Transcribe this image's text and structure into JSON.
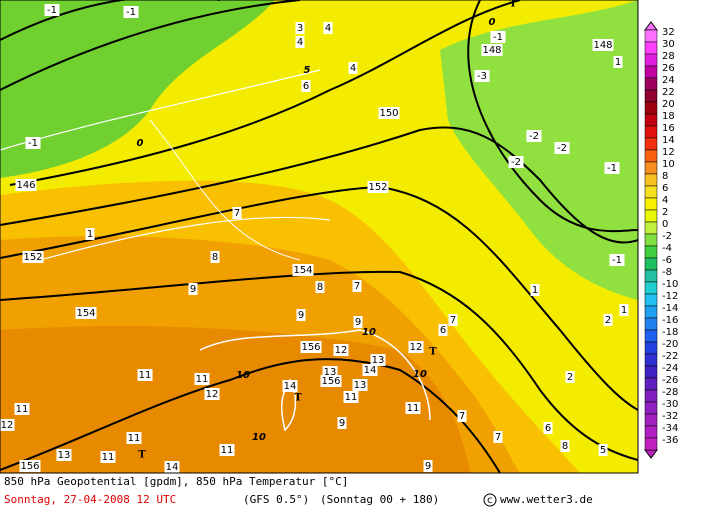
{
  "legend": {
    "labels": [
      32,
      30,
      28,
      26,
      24,
      22,
      20,
      18,
      16,
      14,
      12,
      10,
      8,
      6,
      4,
      2,
      0,
      -2,
      -4,
      -6,
      -8,
      -10,
      -12,
      -14,
      -16,
      -18,
      -20,
      -22,
      -24,
      -26,
      -28,
      -30,
      -32,
      -34,
      -36
    ],
    "colors": [
      "#ff70ff",
      "#ff40ff",
      "#e020e0",
      "#c000a0",
      "#a00060",
      "#900030",
      "#a00010",
      "#c00010",
      "#e01010",
      "#f03010",
      "#f86010",
      "#f89020",
      "#f8c020",
      "#f8e020",
      "#f8f000",
      "#e8f800",
      "#c0f040",
      "#80e040",
      "#40d040",
      "#20c060",
      "#20c0a0",
      "#20d0d0",
      "#20c0f0",
      "#20a0f0",
      "#2080f0",
      "#2060f0",
      "#2040e0",
      "#3030d0",
      "#4020c0",
      "#6020c0",
      "#8020c0",
      "#9020c0",
      "#a020c0",
      "#b020c0",
      "#c020c0"
    ]
  },
  "map_labels": [
    "-1",
    "-1",
    "0",
    "T",
    "3",
    "4",
    "4",
    "-1",
    "148",
    "148",
    "1",
    "5",
    "4",
    "-3",
    "6",
    "150",
    "-2",
    "0",
    "-1",
    "-2",
    "-2",
    "-1",
    "146",
    "152",
    "7",
    "1",
    "152",
    "8",
    "-1",
    "154",
    "8",
    "7",
    "9",
    "1",
    "1",
    "154",
    "9",
    "2",
    "9",
    "7",
    "10",
    "6",
    "156",
    "12",
    "12",
    "T",
    "13",
    "13",
    "14",
    "10",
    "11",
    "11",
    "10",
    "2",
    "14",
    "156",
    "13",
    "T",
    "12",
    "11",
    "11",
    "11",
    "7",
    "12",
    "6",
    "9",
    "10",
    "7",
    "11",
    "8",
    "5",
    "11",
    "T",
    "13",
    "11",
    "156",
    "14",
    "9"
  ],
  "footer": {
    "title": "850 hPa Geopotential [gpdm], 850 hPa Temperatur [°C]",
    "date": "Sonntag, 27-04-2008  12 UTC",
    "model": "(GFS 0.5°)",
    "run": "(Sonntag 00 + 180)",
    "site": "www.wetter3.de"
  }
}
